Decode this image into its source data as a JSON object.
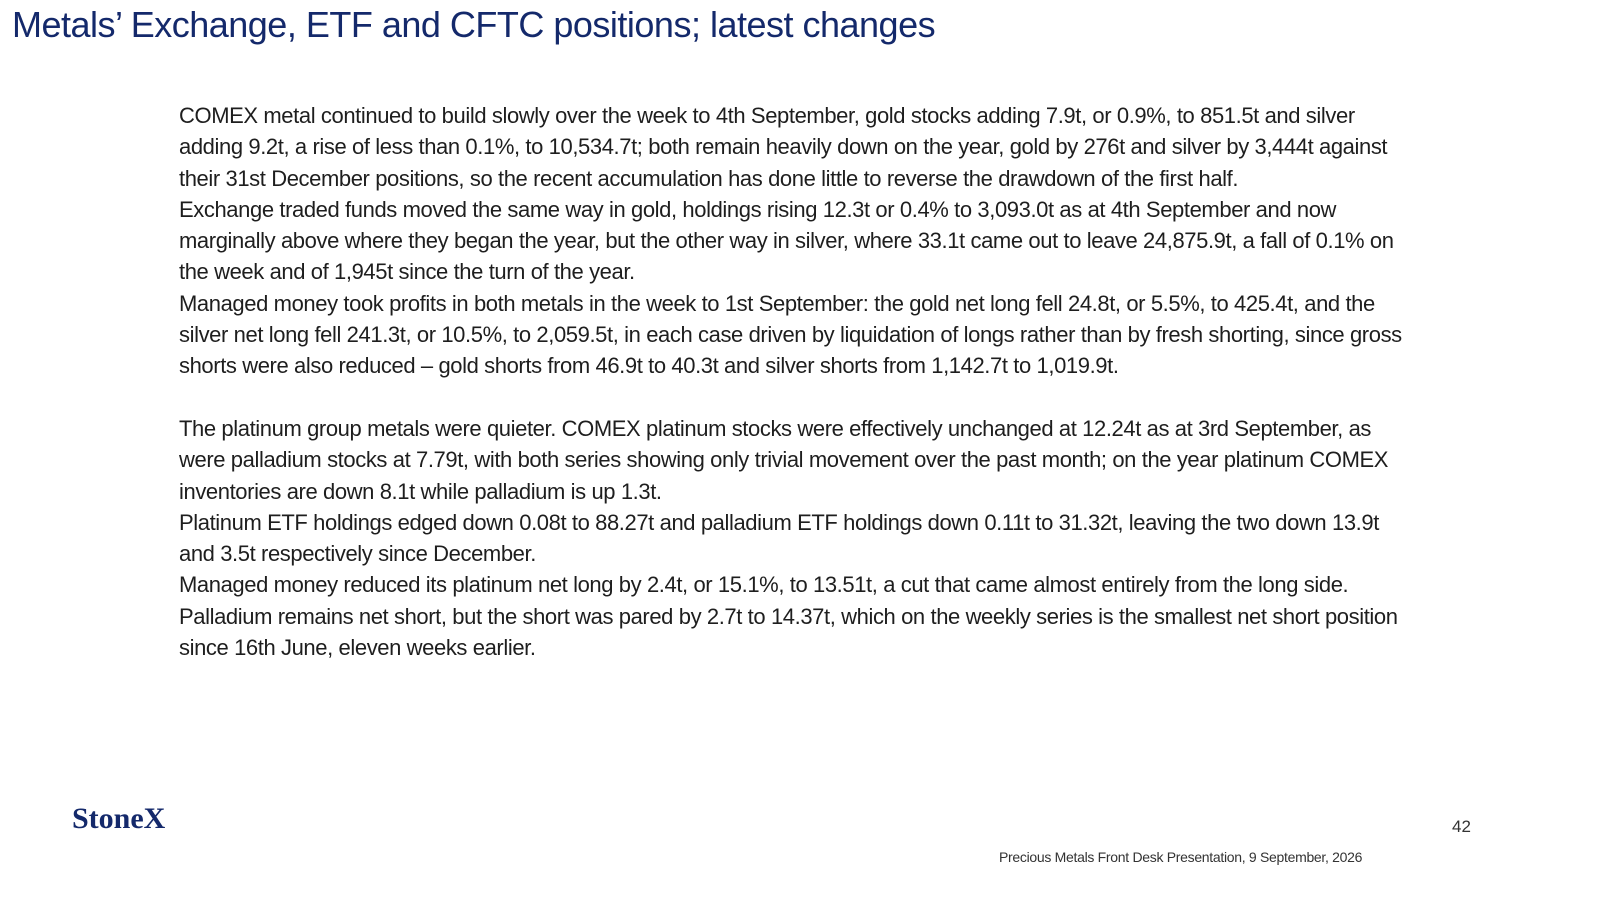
{
  "header": {
    "title": "Metals’ Exchange, ETF and CFTC positions; latest changes"
  },
  "body": {
    "sections": [
      [
        "COMEX metal continued to build slowly over the week to 4th September, gold stocks adding 7.9t, or 0.9%, to 851.5t and silver adding 9.2t, a rise of less than 0.1%, to 10,534.7t; both remain heavily down on the year, gold by 276t and silver by 3,444t against their 31st December positions, so the recent accumulation has done little to reverse the drawdown of the first half.",
        "Exchange traded funds moved the same way in gold, holdings rising 12.3t or 0.4% to 3,093.0t as at 4th September and now marginally above where they began the year, but the other way in silver, where 33.1t came out to leave 24,875.9t, a fall of 0.1% on the week and of 1,945t since the turn of the year.",
        "Managed money took profits in both metals in the week to 1st September: the gold net long fell 24.8t, or 5.5%, to 425.4t, and the silver net long fell 241.3t, or 10.5%, to 2,059.5t, in each case driven by liquidation of longs rather than by fresh shorting, since gross shorts were also reduced – gold shorts from 46.9t to 40.3t and silver shorts from 1,142.7t to 1,019.9t."
      ],
      [
        "The platinum group metals were quieter. COMEX platinum stocks were effectively unchanged at 12.24t as at 3rd September, as were palladium stocks at 7.79t, with both series showing only trivial movement over the past month; on the year platinum COMEX inventories are down 8.1t while palladium is up 1.3t.",
        "Platinum ETF holdings edged down 0.08t to 88.27t and palladium ETF holdings down 0.11t to 31.32t, leaving the two down 13.9t and 3.5t respectively since December.",
        "Managed money reduced its platinum net long by 2.4t, or 15.1%, to 13.51t, a cut that came almost entirely from the long side. Palladium remains net short, but the short was pared by 2.7t to 14.37t, which on the weekly series is the smallest net short position since 16th June, eleven weeks earlier."
      ]
    ]
  },
  "footer": {
    "logo": "StoneX",
    "page_number": "42",
    "note": "Precious Metals Front Desk Presentation, 9 September, 2026"
  }
}
